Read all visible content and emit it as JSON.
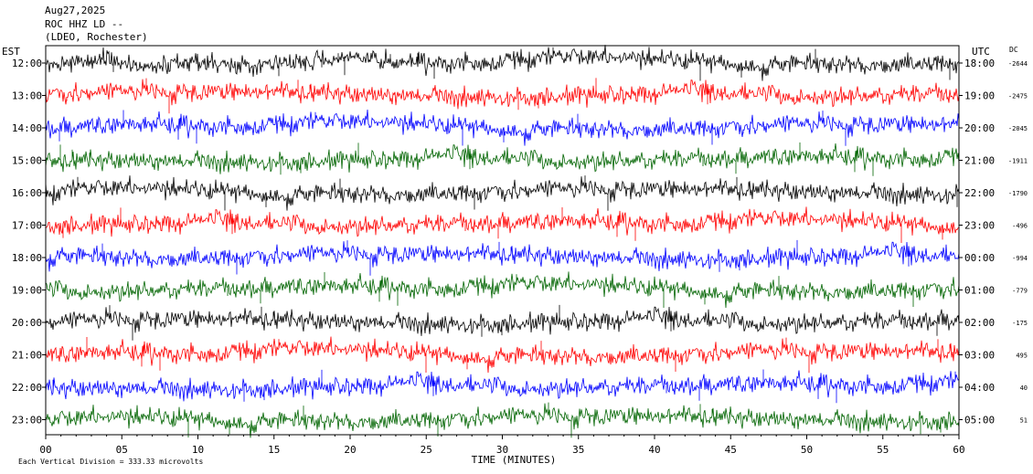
{
  "header": {
    "date": "Aug27,2025",
    "station": "ROC HHZ LD --",
    "location": "(LDEO, Rochester)"
  },
  "left_zone_label": "EST",
  "right_zone_label": "UTC",
  "dc_label": "DC",
  "xlabel": "TIME (MINUTES)",
  "footer": "Each Vertical Division =  333.33 microvolts",
  "colors": {
    "black": "#000000",
    "red": "#ff0000",
    "blue": "#0000ff",
    "green": "#006400"
  },
  "chart_data": {
    "type": "line",
    "title": "",
    "xlabel": "TIME (MINUTES)",
    "xlim": [
      0,
      60
    ],
    "x_ticks": [
      "00",
      "05",
      "10",
      "15",
      "20",
      "25",
      "30",
      "35",
      "40",
      "45",
      "50",
      "55",
      "60"
    ],
    "rows": [
      {
        "est": "12:00",
        "utc": "18:00",
        "dc": "-2644",
        "color": "black"
      },
      {
        "est": "13:00",
        "utc": "19:00",
        "dc": "-2475",
        "color": "red"
      },
      {
        "est": "14:00",
        "utc": "20:00",
        "dc": "-2045",
        "color": "blue"
      },
      {
        "est": "15:00",
        "utc": "21:00",
        "dc": "-1911",
        "color": "green"
      },
      {
        "est": "16:00",
        "utc": "22:00",
        "dc": "-1790",
        "color": "black"
      },
      {
        "est": "17:00",
        "utc": "23:00",
        "dc": "-496",
        "color": "red"
      },
      {
        "est": "18:00",
        "utc": "00:00",
        "dc": "-994",
        "color": "blue"
      },
      {
        "est": "19:00",
        "utc": "01:00",
        "dc": "-779",
        "color": "green"
      },
      {
        "est": "20:00",
        "utc": "02:00",
        "dc": "-175",
        "color": "black"
      },
      {
        "est": "21:00",
        "utc": "03:00",
        "dc": "495",
        "color": "red"
      },
      {
        "est": "22:00",
        "utc": "04:00",
        "dc": "40",
        "color": "blue"
      },
      {
        "est": "23:00",
        "utc": "05:00",
        "dc": "51",
        "color": "green"
      }
    ]
  }
}
